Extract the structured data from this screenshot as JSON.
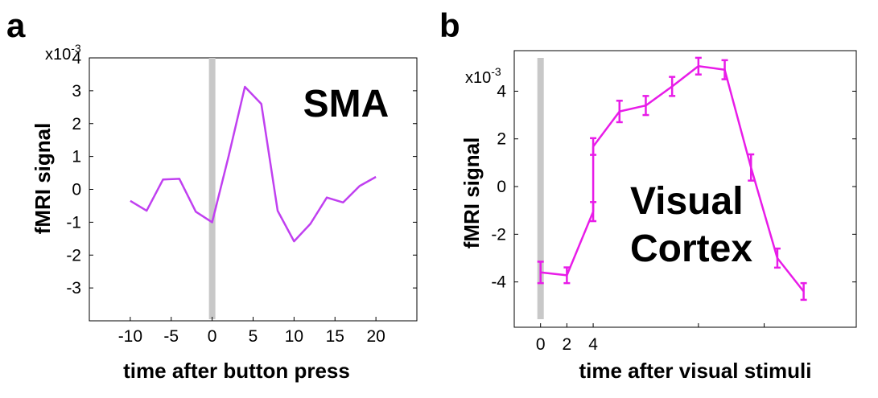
{
  "chart_data": [
    {
      "panel_label": "a",
      "type": "line",
      "annotation": "SMA",
      "xlabel": "time after button press",
      "ylabel": "fMRI signal",
      "y_scale_label": "x10",
      "y_scale_exponent": "-3",
      "xlim": [
        -15,
        25
      ],
      "ylim": [
        -4,
        4
      ],
      "x_ticks": [
        -10,
        -5,
        0,
        5,
        10,
        15,
        20
      ],
      "x_tick_labels": [
        "-10",
        "-5",
        "0",
        "5",
        "10",
        "15",
        "20"
      ],
      "y_ticks": [
        -3,
        -2,
        -1,
        0,
        1,
        2,
        3,
        4
      ],
      "y_tick_labels": [
        "-3",
        "-2",
        "-1",
        "0",
        "1",
        "2",
        "3",
        "4"
      ],
      "event_marker_x": 0,
      "colors": {
        "line": "#c040f0",
        "marker_bar": "#c8c8c8"
      },
      "series": [
        {
          "x": [
            -10,
            -8,
            -6,
            -4,
            -2,
            0,
            2,
            4,
            6,
            8,
            10,
            12,
            14,
            16,
            18,
            20
          ],
          "values": [
            -0.35,
            -0.65,
            0.3,
            0.32,
            -0.68,
            -1.0,
            1.0,
            3.12,
            2.6,
            -0.65,
            -1.58,
            -1.05,
            -0.25,
            -0.4,
            0.1,
            0.38
          ]
        }
      ]
    },
    {
      "panel_label": "b",
      "type": "line",
      "annotation_lines": [
        "Visual",
        "Cortex"
      ],
      "xlabel": "time after visual stimuli",
      "ylabel": "fMRI signal",
      "y_scale_label": "x10",
      "y_scale_exponent": "-3",
      "xlim": [
        -2,
        24
      ],
      "ylim": [
        -5.9,
        5.7
      ],
      "x_ticks": [
        0,
        2,
        4
      ],
      "x_tick_labels": [
        "0",
        "2",
        "4"
      ],
      "x_minor_ticks": [
        12,
        17
      ],
      "y_ticks": [
        -4,
        -2,
        0,
        2,
        4
      ],
      "y_tick_labels": [
        "-4",
        "-2",
        "0",
        "2",
        "4"
      ],
      "event_marker_x": 0,
      "colors": {
        "line": "#e81ce8",
        "marker_bar": "#c8c8c8"
      },
      "series": [
        {
          "x": [
            0,
            2,
            4,
            4,
            6,
            8,
            10,
            12,
            14,
            16,
            18,
            20
          ],
          "values": [
            -3.6,
            -3.72,
            -1.05,
            1.68,
            3.15,
            3.4,
            4.2,
            5.05,
            4.9,
            0.8,
            -3.0,
            -4.4
          ],
          "errors": [
            0.45,
            0.33,
            0.4,
            0.35,
            0.45,
            0.4,
            0.4,
            0.35,
            0.4,
            0.55,
            0.4,
            0.35
          ]
        }
      ]
    }
  ]
}
